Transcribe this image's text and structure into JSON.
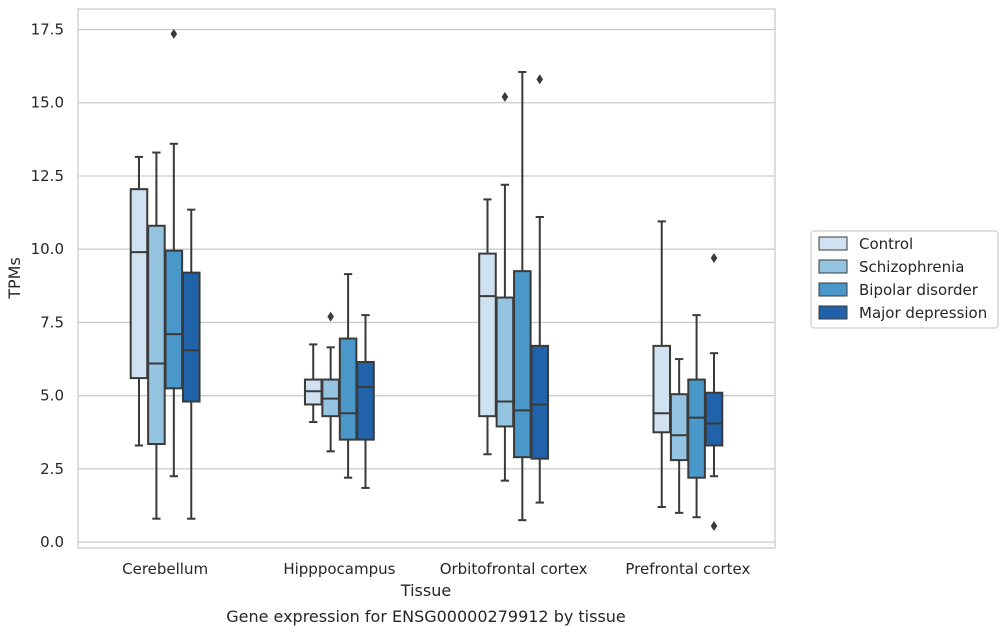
{
  "chart_data": {
    "type": "box",
    "xlabel": "Tissue",
    "ylabel": "TPMs",
    "caption": "Gene expression for ENSG00000279912 by tissue",
    "ylim": [
      -0.2,
      18.2
    ],
    "yticks": [
      0.0,
      2.5,
      5.0,
      7.5,
      10.0,
      12.5,
      15.0,
      17.5
    ],
    "ytick_labels": [
      "0.0",
      "2.5",
      "5.0",
      "7.5",
      "10.0",
      "12.5",
      "15.0",
      "17.5"
    ],
    "grid": "horizontal",
    "legend_position": "right",
    "categories": [
      "Cerebellum",
      "Hipppocampus",
      "Orbitofrontal cortex",
      "Prefrontal cortex"
    ],
    "series": [
      {
        "name": "Control",
        "color": "#d0e1f2",
        "boxes": [
          {
            "whislo": 3.3,
            "q1": 5.6,
            "med": 9.9,
            "q3": 12.05,
            "whishi": 13.15,
            "fliers": []
          },
          {
            "whislo": 4.1,
            "q1": 4.7,
            "med": 5.15,
            "q3": 5.55,
            "whishi": 6.75,
            "fliers": []
          },
          {
            "whislo": 3.0,
            "q1": 4.3,
            "med": 8.4,
            "q3": 9.85,
            "whishi": 11.7,
            "fliers": []
          },
          {
            "whislo": 1.2,
            "q1": 3.75,
            "med": 4.4,
            "q3": 6.7,
            "whishi": 10.95,
            "fliers": []
          }
        ]
      },
      {
        "name": "Schizophrenia",
        "color": "#94c4df",
        "boxes": [
          {
            "whislo": 0.8,
            "q1": 3.35,
            "med": 6.1,
            "q3": 10.8,
            "whishi": 13.3,
            "fliers": []
          },
          {
            "whislo": 3.1,
            "q1": 4.3,
            "med": 4.9,
            "q3": 5.55,
            "whishi": 6.65,
            "fliers": [
              7.7
            ]
          },
          {
            "whislo": 2.1,
            "q1": 3.95,
            "med": 4.8,
            "q3": 8.35,
            "whishi": 12.2,
            "fliers": [
              15.2
            ]
          },
          {
            "whislo": 1.0,
            "q1": 2.8,
            "med": 3.65,
            "q3": 5.05,
            "whishi": 6.25,
            "fliers": []
          }
        ]
      },
      {
        "name": "Bipolar disorder",
        "color": "#4a98c9",
        "boxes": [
          {
            "whislo": 2.25,
            "q1": 5.25,
            "med": 7.1,
            "q3": 9.95,
            "whishi": 13.6,
            "fliers": [
              17.35
            ]
          },
          {
            "whislo": 2.2,
            "q1": 3.5,
            "med": 4.4,
            "q3": 6.95,
            "whishi": 9.15,
            "fliers": []
          },
          {
            "whislo": 0.75,
            "q1": 2.9,
            "med": 4.5,
            "q3": 9.25,
            "whishi": 16.05,
            "fliers": []
          },
          {
            "whislo": 0.85,
            "q1": 2.2,
            "med": 4.25,
            "q3": 5.55,
            "whishi": 7.75,
            "fliers": []
          }
        ]
      },
      {
        "name": "Major depression",
        "color": "#2163aa",
        "boxes": [
          {
            "whislo": 0.8,
            "q1": 4.8,
            "med": 6.55,
            "q3": 9.2,
            "whishi": 11.35,
            "fliers": []
          },
          {
            "whislo": 1.85,
            "q1": 3.5,
            "med": 5.3,
            "q3": 6.15,
            "whishi": 7.75,
            "fliers": []
          },
          {
            "whislo": 1.35,
            "q1": 2.85,
            "med": 4.7,
            "q3": 6.7,
            "whishi": 11.1,
            "fliers": [
              15.8
            ]
          },
          {
            "whislo": 2.25,
            "q1": 3.3,
            "med": 4.05,
            "q3": 5.1,
            "whishi": 6.45,
            "fliers": [
              9.7,
              0.55
            ]
          }
        ]
      }
    ]
  }
}
